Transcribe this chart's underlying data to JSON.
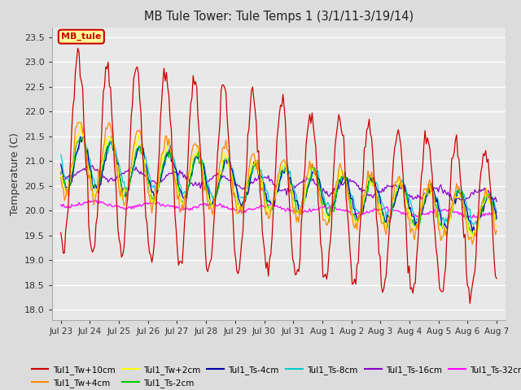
{
  "title": "MB Tule Tower: Tule Temps 1 (3/1/11-3/19/14)",
  "ylabel": "Temperature (C)",
  "ylim": [
    17.8,
    23.7
  ],
  "yticks": [
    18.0,
    18.5,
    19.0,
    19.5,
    20.0,
    20.5,
    21.0,
    21.5,
    22.0,
    22.5,
    23.0,
    23.5
  ],
  "bg_color": "#dcdcdc",
  "plot_bg_color": "#e8e8e8",
  "series_colors": {
    "Tul1_Tw+10cm": "#cc0000",
    "Tul1_Tw+4cm": "#ff8800",
    "Tul1_Tw+2cm": "#ffff00",
    "Tul1_Ts-2cm": "#00cc00",
    "Tul1_Ts-4cm": "#0000aa",
    "Tul1_Ts-8cm": "#00cccc",
    "Tul1_Ts-16cm": "#8800cc",
    "Tul1_Ts-32cm": "#ff00ff"
  },
  "annotation_label": "MB_tule",
  "annotation_color": "#cc0000",
  "annotation_bg": "#ffff99",
  "x_tick_labels": [
    "Jul 23",
    "Jul 24",
    "Jul 25",
    "Jul 26",
    "Jul 27",
    "Jul 28",
    "Jul 29",
    "Jul 30",
    "Jul 31",
    "Aug 1",
    "Aug 2",
    "Aug 3",
    "Aug 4",
    "Aug 5",
    "Aug 6",
    "Aug 7"
  ],
  "num_days": 15,
  "figsize": [
    6.4,
    4.8
  ],
  "dpi": 100
}
